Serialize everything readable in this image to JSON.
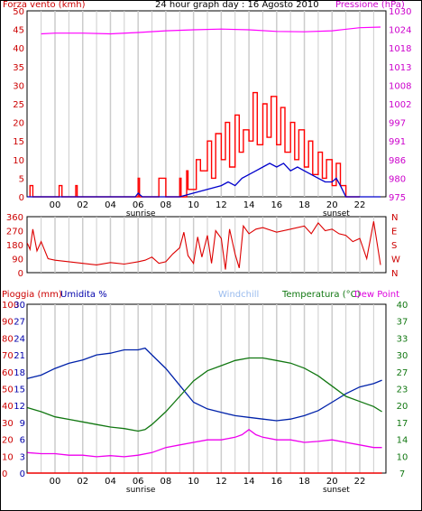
{
  "header": {
    "title": "24 hour graph day : 16 Agosto 2010",
    "left_label": "Forza vento (kmh)",
    "right_label": "Pressione (hPa)"
  },
  "bottom_header": {
    "rain_label": "Pioggia (mm)",
    "humidity_label": "Umidita %",
    "windchill_label": "Windchill",
    "temp_label": "Temperatura (°C)",
    "dewpoint_label": "Dew Point"
  },
  "colors": {
    "wind": "#ff0000",
    "pressure": "#ff00ff",
    "gust_avg": "#0000cc",
    "direction": "#dd0000",
    "humidity": "#0022aa",
    "temperature": "#117711",
    "dewpoint": "#ee00ee",
    "windchill": "#99bbee",
    "rain": "#ee0000"
  },
  "chart_data": [
    {
      "type": "line",
      "x_ticks": [
        "00",
        "02",
        "04",
        "06",
        "08",
        "10",
        "12",
        "14",
        "16",
        "18",
        "20",
        "22"
      ],
      "x_annotations": [
        "sunrise",
        "sunset"
      ],
      "ylabel_left": "Forza vento (kmh)",
      "ylim_left": [
        0,
        50
      ],
      "yticks_left": [
        0,
        5,
        10,
        15,
        20,
        25,
        30,
        35,
        40,
        45,
        50
      ],
      "ylabel_right": "Pressione (hPa)",
      "ylim_right": [
        975,
        1030
      ],
      "yticks_right": [
        975,
        980,
        986,
        991,
        997,
        1002,
        1008,
        1013,
        1018,
        1024,
        1030
      ],
      "series": [
        {
          "name": "Pressione (hPa)",
          "axis": "right",
          "x": [
            -1,
            0,
            2,
            4,
            6,
            8,
            10,
            12,
            14,
            16,
            18,
            20,
            22,
            23.5
          ],
          "values": [
            1023.2,
            1023.4,
            1023.4,
            1023.2,
            1023.6,
            1024.1,
            1024.4,
            1024.6,
            1024.4,
            1023.9,
            1023.8,
            1024.1,
            1025.0,
            1025.2
          ]
        },
        {
          "name": "Forza vento (kmh)",
          "axis": "left",
          "x": [
            -1.8,
            -1.8,
            -1.6,
            -1.6,
            0.3,
            0.3,
            0.5,
            0.5,
            1.5,
            1.5,
            1.6,
            1.6,
            6,
            6,
            6.1,
            6.1,
            7.5,
            7.5,
            8,
            8,
            9,
            9,
            9.1,
            9.1,
            9.5,
            9.5,
            9.6,
            9.6,
            10.2,
            10.2,
            10.5,
            10.5,
            11,
            11,
            11.3,
            11.3,
            11.6,
            11.6,
            12,
            12,
            12.3,
            12.3,
            12.6,
            12.6,
            13,
            13,
            13.3,
            13.3,
            13.6,
            13.6,
            14,
            14,
            14.3,
            14.3,
            14.6,
            14.6,
            15,
            15,
            15.3,
            15.3,
            15.6,
            15.6,
            16,
            16,
            16.3,
            16.3,
            16.6,
            16.6,
            17,
            17,
            17.3,
            17.3,
            17.6,
            17.6,
            18,
            18,
            18.3,
            18.3,
            18.6,
            18.6,
            19,
            19,
            19.3,
            19.3,
            19.6,
            19.6,
            20,
            20,
            20.3,
            20.3,
            20.6,
            20.6,
            21,
            21,
            22,
            22
          ],
          "values": [
            0,
            3,
            3,
            0,
            0,
            3,
            3,
            0,
            0,
            3,
            3,
            0,
            0,
            5,
            5,
            0,
            0,
            5,
            5,
            0,
            0,
            5,
            5,
            0,
            0,
            7,
            7,
            2,
            2,
            10,
            10,
            7,
            7,
            15,
            15,
            5,
            5,
            17,
            17,
            10,
            10,
            20,
            20,
            8,
            8,
            22,
            22,
            12,
            12,
            18,
            18,
            15,
            15,
            28,
            28,
            14,
            14,
            25,
            25,
            16,
            16,
            27,
            27,
            14,
            14,
            24,
            24,
            12,
            12,
            20,
            20,
            10,
            10,
            18,
            18,
            8,
            8,
            15,
            15,
            6,
            6,
            12,
            12,
            5,
            5,
            10,
            10,
            3,
            3,
            9,
            9,
            3,
            3,
            0,
            0,
            0
          ]
        },
        {
          "name": "Raffica media",
          "axis": "left",
          "x": [
            -2,
            5.8,
            6,
            6.3,
            6.5,
            9,
            10,
            11,
            12,
            12.5,
            13,
            13.5,
            14,
            14.5,
            15,
            15.5,
            16,
            16.5,
            17,
            17.5,
            18,
            18.5,
            19,
            19.5,
            20,
            20.3,
            20.6,
            21,
            23.5
          ],
          "values": [
            0,
            0,
            1,
            0,
            0,
            0,
            1,
            2,
            3,
            4,
            3,
            5,
            6,
            7,
            8,
            9,
            8,
            9,
            7,
            8,
            7,
            6,
            5,
            4,
            4,
            5,
            3,
            0,
            0
          ]
        }
      ]
    },
    {
      "type": "line",
      "ylabel_left": "",
      "yticks_left": [
        0,
        90,
        180,
        270,
        360
      ],
      "ylim_left": [
        0,
        360
      ],
      "yticks_right": [
        "N",
        "W",
        "S",
        "E",
        "N"
      ],
      "series": [
        {
          "name": "Direzione vento",
          "x": [
            -2,
            -1.8,
            -1.6,
            -1.3,
            -1,
            -0.5,
            0,
            1,
            2,
            3,
            4,
            5,
            6,
            6.5,
            7,
            7.5,
            8,
            8.5,
            9,
            9.3,
            9.6,
            10,
            10.3,
            10.6,
            11,
            11.3,
            11.6,
            12,
            12.3,
            12.6,
            13,
            13.3,
            13.6,
            14,
            14.5,
            15,
            16,
            17,
            18,
            18.5,
            19,
            19.5,
            20,
            20.5,
            21,
            21.5,
            22,
            22.5,
            23,
            23.5
          ],
          "values": [
            190,
            150,
            280,
            140,
            200,
            90,
            80,
            70,
            60,
            50,
            65,
            55,
            70,
            80,
            100,
            60,
            70,
            120,
            160,
            260,
            110,
            60,
            230,
            100,
            240,
            60,
            270,
            220,
            20,
            280,
            120,
            30,
            300,
            250,
            280,
            290,
            260,
            280,
            300,
            250,
            320,
            270,
            280,
            250,
            240,
            200,
            220,
            90,
            330,
            50
          ]
        }
      ]
    },
    {
      "type": "line",
      "x_ticks": [
        "00",
        "02",
        "04",
        "06",
        "08",
        "10",
        "12",
        "14",
        "16",
        "18",
        "20",
        "22"
      ],
      "x_annotations": [
        "sunrise",
        "sunset"
      ],
      "ylabel_left_outer": "Pioggia (mm)",
      "yticks_left_outer": [
        0,
        10,
        20,
        30,
        40,
        50,
        60,
        70,
        80,
        90,
        100
      ],
      "ylabel_left_inner": "Umidita %",
      "yticks_left_inner": [
        0,
        3,
        6,
        9,
        12,
        15,
        18,
        21,
        24,
        27,
        30
      ],
      "ylabel_right": "Temperatura (°C)",
      "yticks_right": [
        7,
        10,
        14,
        17,
        20,
        23,
        27,
        30,
        33,
        37,
        40
      ],
      "ylim_right": [
        7,
        40
      ],
      "series": [
        {
          "name": "Umidita %",
          "axis": "left_outer",
          "x": [
            -2,
            -1,
            0,
            1,
            2,
            3,
            4,
            5,
            6,
            6.5,
            7,
            8,
            9,
            10,
            11,
            12,
            13,
            14,
            15,
            16,
            17,
            18,
            19,
            20,
            21,
            22,
            23,
            23.6
          ],
          "values": [
            56,
            58,
            62,
            65,
            67,
            70,
            71,
            73,
            73,
            74,
            70,
            62,
            52,
            42,
            38,
            36,
            34,
            33,
            32,
            31,
            32,
            34,
            37,
            42,
            47,
            51,
            53,
            55
          ]
        },
        {
          "name": "Temperatura (°C)",
          "axis": "right",
          "x": [
            -2,
            -1,
            0,
            1,
            2,
            3,
            4,
            5,
            6,
            6.5,
            7,
            8,
            9,
            10,
            11,
            12,
            13,
            14,
            15,
            16,
            17,
            18,
            19,
            20,
            21,
            22,
            23,
            23.6
          ],
          "values": [
            19.8,
            19,
            18,
            17.5,
            17,
            16.5,
            16,
            15.7,
            15.2,
            15.5,
            16.5,
            19,
            22,
            25,
            27,
            28,
            29,
            29.5,
            29.5,
            29,
            28.5,
            27.5,
            26,
            24,
            22,
            21,
            20,
            19
          ]
        },
        {
          "name": "Dew Point",
          "axis": "right",
          "x": [
            -2,
            -1,
            0,
            1,
            2,
            3,
            4,
            5,
            6,
            7,
            8,
            9,
            10,
            11,
            12,
            13,
            13.5,
            14,
            14.5,
            15,
            16,
            17,
            18,
            19,
            20,
            21,
            22,
            23,
            23.6
          ],
          "values": [
            11,
            10.8,
            10.8,
            10.5,
            10.5,
            10.2,
            10.4,
            10.2,
            10.5,
            11,
            12,
            12.5,
            13,
            13.5,
            13.5,
            14,
            14.5,
            15.5,
            14.5,
            14,
            13.5,
            13.5,
            13,
            13.2,
            13.5,
            13,
            12.5,
            12,
            12
          ]
        },
        {
          "name": "Pioggia (mm)",
          "axis": "left_outer",
          "x": [
            -2,
            23.6
          ],
          "values": [
            0,
            0
          ]
        }
      ]
    }
  ]
}
